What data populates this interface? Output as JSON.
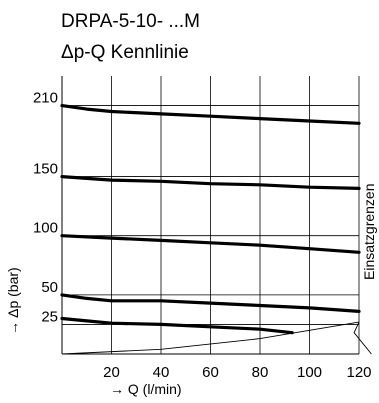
{
  "chart_data": {
    "type": "line",
    "title": "DRPA-5-10- ...M",
    "subtitle": "Δp-Q Kennlinie",
    "xlabel": "→ Q (l/min)",
    "ylabel": "→ Δp (bar)",
    "side_label": "Einsatzgrenzen",
    "xlim": [
      0,
      120
    ],
    "xticks": [
      20,
      40,
      60,
      80,
      100,
      120
    ],
    "ylim": [
      0,
      235
    ],
    "yticks": [
      25,
      50,
      100,
      150,
      210
    ],
    "grid": true,
    "series": [
      {
        "x": [
          0,
          10,
          20,
          40,
          60,
          80,
          100,
          120
        ],
        "y": [
          210,
          207,
          205,
          203,
          201,
          199,
          197,
          195
        ]
      },
      {
        "x": [
          0,
          20,
          40,
          60,
          80,
          100,
          120
        ],
        "y": [
          150,
          147,
          146,
          144,
          143,
          141,
          140
        ]
      },
      {
        "x": [
          0,
          20,
          40,
          60,
          80,
          100,
          120
        ],
        "y": [
          100,
          98,
          96,
          94,
          92,
          89,
          86
        ]
      },
      {
        "x": [
          0,
          10,
          20,
          40,
          60,
          80,
          100,
          120
        ],
        "y": [
          50,
          47,
          45,
          45,
          43,
          41,
          39,
          36
        ]
      },
      {
        "x": [
          0,
          10,
          20,
          40,
          60,
          80,
          93
        ],
        "y": [
          30,
          28,
          26,
          25,
          23,
          21,
          18
        ]
      }
    ],
    "limit_line": {
      "x": [
        0,
        40,
        80,
        120
      ],
      "y": [
        0,
        4,
        13,
        27
      ]
    },
    "limit_ticks": {
      "x": [
        120,
        118,
        125
      ],
      "y": [
        27,
        18,
        0
      ]
    }
  }
}
